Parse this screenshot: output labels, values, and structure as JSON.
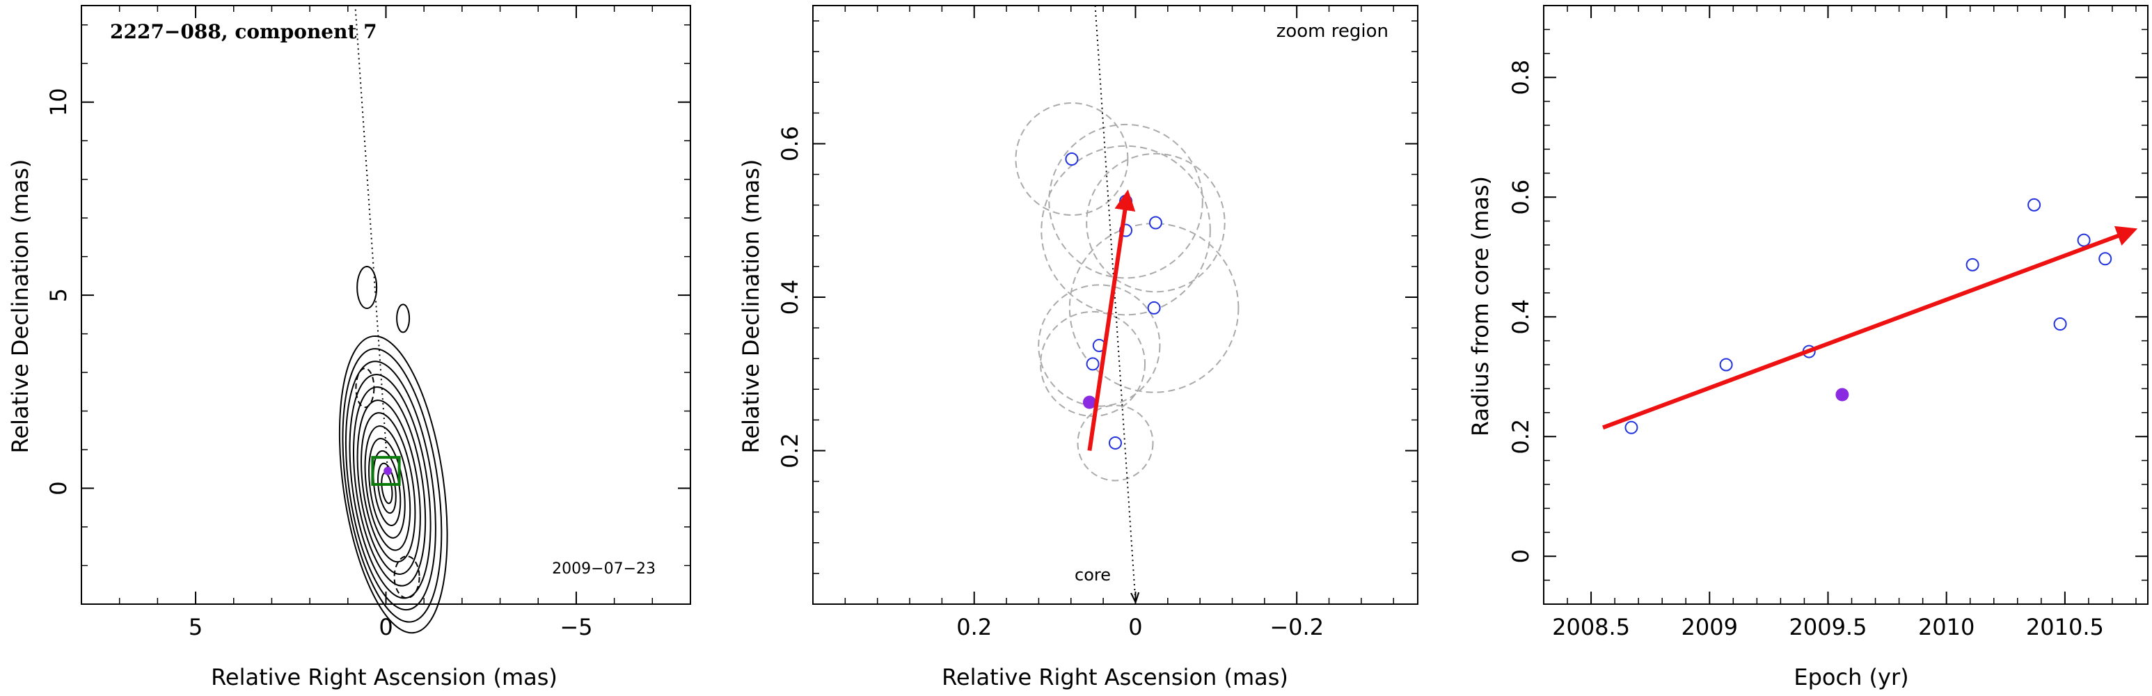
{
  "colors": {
    "axis": "#000000",
    "trend_arrow": "#ee1111",
    "open_points": "#2233dd",
    "filled_point": "#8a2be2",
    "circles": "#aaaaaa",
    "box": "#0a7a0a"
  },
  "chart_data": [
    {
      "type": "contour",
      "title": "2227−088, component 7",
      "date": "2009−07−23",
      "xlabel": "Relative Right Ascension (mas)",
      "ylabel": "Relative Declination (mas)",
      "xlim": [
        8,
        -8
      ],
      "ylim": [
        -3,
        12.5
      ],
      "x_ticks": [
        5,
        0,
        -5
      ],
      "x_tick_labels": [
        "5",
        "0",
        "−5"
      ],
      "y_ticks": [
        0,
        5,
        10
      ],
      "y_tick_labels": [
        "0",
        "5",
        "10"
      ],
      "core": {
        "x": 0,
        "y": 0
      },
      "component": {
        "x": -0.05,
        "y": 0.45
      },
      "direction_line": [
        [
          0.8,
          12.4
        ],
        [
          -0.05,
          0.4
        ]
      ],
      "zoom_box": {
        "x0": 0.35,
        "x1": -0.35,
        "y0": 0.1,
        "y1": 0.8
      }
    },
    {
      "type": "scatter",
      "title": "zoom region",
      "core_label": "core",
      "xlabel": "Relative Right Ascension (mas)",
      "ylabel": "Relative Declination (mas)",
      "xlim": [
        0.4,
        -0.35
      ],
      "ylim": [
        0,
        0.78
      ],
      "x_ticks": [
        0.2,
        0,
        -0.2
      ],
      "x_tick_labels": [
        "0.2",
        "0",
        "−0.2"
      ],
      "y_ticks": [
        0.2,
        0.4,
        0.6
      ],
      "y_tick_labels": [
        "0.2",
        "0.4",
        "0.6"
      ],
      "points": [
        {
          "x": 0.079,
          "y": 0.58,
          "r": 0.073
        },
        {
          "x": 0.012,
          "y": 0.525,
          "r": 0.1
        },
        {
          "x": 0.012,
          "y": 0.487,
          "r": 0.11
        },
        {
          "x": -0.025,
          "y": 0.497,
          "r": 0.09
        },
        {
          "x": -0.023,
          "y": 0.386,
          "r": 0.11
        },
        {
          "x": 0.045,
          "y": 0.337,
          "r": 0.079
        },
        {
          "x": 0.053,
          "y": 0.313,
          "r": 0.068
        },
        {
          "x": 0.025,
          "y": 0.21,
          "r": 0.049
        }
      ],
      "filled_point": {
        "x": 0.057,
        "y": 0.263
      },
      "trend_arrow": [
        [
          0.057,
          0.2
        ],
        [
          0.01,
          0.535
        ]
      ],
      "direction_line": [
        [
          0.05,
          0.78
        ],
        [
          0,
          0
        ]
      ]
    },
    {
      "type": "scatter",
      "xlabel": "Epoch (yr)",
      "ylabel": "Radius from core (mas)",
      "xlim": [
        2008.3,
        2010.85
      ],
      "ylim": [
        -0.08,
        0.92
      ],
      "x_ticks": [
        2008.5,
        2009,
        2009.5,
        2010,
        2010.5
      ],
      "x_tick_labels": [
        "2008.5",
        "2009",
        "2009.5",
        "2010",
        "2010.5"
      ],
      "y_ticks": [
        0,
        0.2,
        0.4,
        0.6,
        0.8
      ],
      "y_tick_labels": [
        "0",
        "0.2",
        "0.4",
        "0.6",
        "0.8"
      ],
      "points": [
        {
          "x": 2008.67,
          "y": 0.215
        },
        {
          "x": 2009.07,
          "y": 0.32
        },
        {
          "x": 2009.42,
          "y": 0.342
        },
        {
          "x": 2010.11,
          "y": 0.487
        },
        {
          "x": 2010.37,
          "y": 0.587
        },
        {
          "x": 2010.48,
          "y": 0.388
        },
        {
          "x": 2010.58,
          "y": 0.528
        },
        {
          "x": 2010.67,
          "y": 0.497
        }
      ],
      "filled_point": {
        "x": 2009.56,
        "y": 0.27
      },
      "trend_arrow": [
        [
          2008.55,
          0.215
        ],
        [
          2010.79,
          0.545
        ]
      ]
    }
  ]
}
